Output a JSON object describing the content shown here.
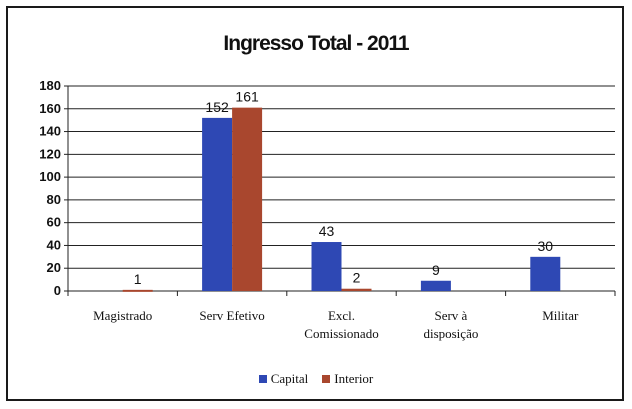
{
  "chart_data": {
    "type": "bar",
    "title": "Ingresso Total - 2011",
    "categories": [
      [
        "Magistrado"
      ],
      [
        "Serv Efetivo"
      ],
      [
        "Excl.",
        "Comissionado"
      ],
      [
        "Serv à",
        "disposição"
      ],
      [
        "Militar"
      ]
    ],
    "series": [
      {
        "name": "Capital",
        "color": "#2e48b4",
        "values": [
          null,
          152,
          43,
          9,
          30
        ],
        "labels": [
          "",
          "152",
          "43",
          "9",
          "30"
        ]
      },
      {
        "name": "Interior",
        "color": "#a9472e",
        "values": [
          1,
          161,
          2,
          null,
          null
        ],
        "labels": [
          "1",
          "161",
          "2",
          "",
          ""
        ]
      }
    ],
    "ylim": [
      0,
      180
    ],
    "yticks": [
      "0",
      "20",
      "40",
      "60",
      "80",
      "100",
      "120",
      "140",
      "160",
      "180"
    ],
    "grid": true,
    "legend_position": "bottom"
  }
}
